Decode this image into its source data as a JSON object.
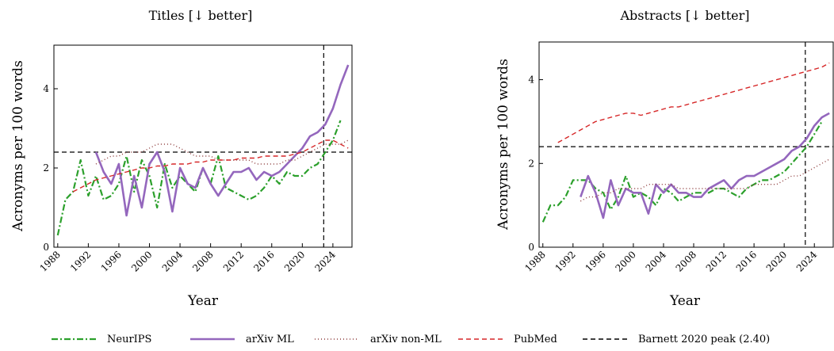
{
  "chart_data": [
    {
      "type": "line",
      "title": "Titles [↓ better]",
      "xlabel": "Year",
      "ylabel": "Acronyms per 100 words",
      "xlim": [
        1987.5,
        2026.5
      ],
      "ylim": [
        0,
        5.1
      ],
      "xticks": [
        1988,
        1992,
        1996,
        2000,
        2004,
        2008,
        2012,
        2016,
        2020,
        2024
      ],
      "yticks": [
        0,
        2,
        4
      ],
      "reference_y": 2.4,
      "reference_x": 2022.8,
      "series": [
        {
          "name": "NeurIPS",
          "color": "#2ca02c",
          "dash": "8 3 2 3",
          "x": [
            1988,
            1989,
            1990,
            1991,
            1992,
            1993,
            1994,
            1995,
            1996,
            1997,
            1998,
            1999,
            2000,
            2001,
            2002,
            2003,
            2004,
            2005,
            2006,
            2007,
            2008,
            2009,
            2010,
            2011,
            2012,
            2013,
            2014,
            2015,
            2016,
            2017,
            2018,
            2019,
            2020,
            2021,
            2022,
            2023,
            2024,
            2025
          ],
          "y": [
            0.3,
            1.2,
            1.4,
            2.2,
            1.3,
            1.8,
            1.2,
            1.3,
            1.6,
            2.3,
            1.4,
            2.2,
            1.8,
            1.0,
            2.1,
            1.5,
            1.8,
            1.6,
            1.4,
            2.0,
            1.6,
            2.3,
            1.5,
            1.4,
            1.3,
            1.2,
            1.3,
            1.5,
            1.8,
            1.6,
            1.9,
            1.8,
            1.8,
            2.0,
            2.1,
            2.4,
            2.7,
            3.2
          ]
        },
        {
          "name": "arXiv ML",
          "color": "#9467bd",
          "dash": "",
          "x": [
            1993,
            1994,
            1995,
            1996,
            1997,
            1998,
            1999,
            2000,
            2001,
            2002,
            2003,
            2004,
            2005,
            2006,
            2007,
            2008,
            2009,
            2010,
            2011,
            2012,
            2013,
            2014,
            2015,
            2016,
            2017,
            2018,
            2019,
            2020,
            2021,
            2022,
            2023,
            2024,
            2025,
            2026
          ],
          "y": [
            2.4,
            1.9,
            1.6,
            2.1,
            0.8,
            1.8,
            1.0,
            2.1,
            2.4,
            1.9,
            0.9,
            2.0,
            1.6,
            1.5,
            2.0,
            1.6,
            1.3,
            1.6,
            1.9,
            1.9,
            2.0,
            1.7,
            1.9,
            1.8,
            1.9,
            2.1,
            2.3,
            2.5,
            2.8,
            2.9,
            3.1,
            3.5,
            4.1,
            4.6
          ]
        },
        {
          "name": "arXiv non-ML",
          "color": "#8c3a3a",
          "dash": "1 3",
          "x": [
            1993,
            1994,
            1995,
            1996,
            1997,
            1998,
            1999,
            2000,
            2001,
            2002,
            2003,
            2004,
            2005,
            2006,
            2007,
            2008,
            2009,
            2010,
            2011,
            2012,
            2013,
            2014,
            2015,
            2016,
            2017,
            2018,
            2019,
            2020,
            2021,
            2022,
            2023,
            2024,
            2025,
            2026
          ],
          "y": [
            2.1,
            2.2,
            2.3,
            2.3,
            2.4,
            2.4,
            2.4,
            2.5,
            2.6,
            2.6,
            2.6,
            2.5,
            2.4,
            2.3,
            2.3,
            2.3,
            2.2,
            2.2,
            2.2,
            2.2,
            2.2,
            2.1,
            2.1,
            2.1,
            2.1,
            2.2,
            2.2,
            2.3,
            2.4,
            2.5,
            2.6,
            2.6,
            2.6,
            2.7
          ]
        },
        {
          "name": "PubMed",
          "color": "#d62728",
          "dash": "6 4",
          "x": [
            1990,
            1991,
            1992,
            1993,
            1994,
            1995,
            1996,
            1997,
            1998,
            1999,
            2000,
            2001,
            2002,
            2003,
            2004,
            2005,
            2006,
            2007,
            2008,
            2009,
            2010,
            2011,
            2012,
            2013,
            2014,
            2015,
            2016,
            2017,
            2018,
            2019,
            2020,
            2021,
            2022,
            2023,
            2024,
            2025,
            2026
          ],
          "y": [
            1.4,
            1.5,
            1.6,
            1.7,
            1.75,
            1.8,
            1.85,
            1.9,
            1.95,
            2.0,
            2.0,
            2.05,
            2.05,
            2.1,
            2.1,
            2.1,
            2.15,
            2.15,
            2.2,
            2.2,
            2.2,
            2.2,
            2.25,
            2.25,
            2.25,
            2.3,
            2.3,
            2.3,
            2.3,
            2.35,
            2.4,
            2.5,
            2.6,
            2.7,
            2.7,
            2.6,
            2.5
          ]
        }
      ]
    },
    {
      "type": "line",
      "title": "Abstracts [↓ better]",
      "xlabel": "Year",
      "ylabel": "Acronyms per 100 words",
      "xlim": [
        1987.5,
        2026.5
      ],
      "ylim": [
        0,
        4.9
      ],
      "xticks": [
        1988,
        1992,
        1996,
        2000,
        2004,
        2008,
        2012,
        2016,
        2020,
        2024
      ],
      "yticks": [
        0,
        2,
        4
      ],
      "reference_y": 2.4,
      "reference_x": 2022.8,
      "series": [
        {
          "name": "NeurIPS",
          "color": "#2ca02c",
          "dash": "8 3 2 3",
          "x": [
            1988,
            1989,
            1990,
            1991,
            1992,
            1993,
            1994,
            1995,
            1996,
            1997,
            1998,
            1999,
            2000,
            2001,
            2002,
            2003,
            2004,
            2005,
            2006,
            2007,
            2008,
            2009,
            2010,
            2011,
            2012,
            2013,
            2014,
            2015,
            2016,
            2017,
            2018,
            2019,
            2020,
            2021,
            2022,
            2023,
            2024,
            2025
          ],
          "y": [
            0.6,
            1.0,
            1.0,
            1.2,
            1.6,
            1.6,
            1.6,
            1.4,
            1.3,
            0.9,
            1.2,
            1.7,
            1.2,
            1.3,
            1.2,
            1.0,
            1.4,
            1.3,
            1.1,
            1.2,
            1.3,
            1.3,
            1.3,
            1.4,
            1.4,
            1.3,
            1.2,
            1.4,
            1.5,
            1.6,
            1.6,
            1.7,
            1.8,
            2.0,
            2.2,
            2.4,
            2.7,
            3.0
          ]
        },
        {
          "name": "arXiv ML",
          "color": "#9467bd",
          "dash": "",
          "x": [
            1993,
            1994,
            1995,
            1996,
            1997,
            1998,
            1999,
            2000,
            2001,
            2002,
            2003,
            2004,
            2005,
            2006,
            2007,
            2008,
            2009,
            2010,
            2011,
            2012,
            2013,
            2014,
            2015,
            2016,
            2017,
            2018,
            2019,
            2020,
            2021,
            2022,
            2023,
            2024,
            2025,
            2026
          ],
          "y": [
            1.2,
            1.7,
            1.3,
            0.7,
            1.6,
            1.0,
            1.4,
            1.3,
            1.3,
            0.8,
            1.5,
            1.3,
            1.5,
            1.3,
            1.3,
            1.2,
            1.2,
            1.4,
            1.5,
            1.6,
            1.4,
            1.6,
            1.7,
            1.7,
            1.8,
            1.9,
            2.0,
            2.1,
            2.3,
            2.4,
            2.6,
            2.9,
            3.1,
            3.2
          ]
        },
        {
          "name": "arXiv non-ML",
          "color": "#8c3a3a",
          "dash": "1 3",
          "x": [
            1993,
            1994,
            1995,
            1996,
            1997,
            1998,
            1999,
            2000,
            2001,
            2002,
            2003,
            2004,
            2005,
            2006,
            2007,
            2008,
            2009,
            2010,
            2011,
            2012,
            2013,
            2014,
            2015,
            2016,
            2017,
            2018,
            2019,
            2020,
            2021,
            2022,
            2023,
            2024,
            2025,
            2026
          ],
          "y": [
            1.1,
            1.2,
            1.2,
            1.3,
            1.3,
            1.4,
            1.4,
            1.4,
            1.4,
            1.5,
            1.5,
            1.5,
            1.5,
            1.4,
            1.4,
            1.4,
            1.4,
            1.4,
            1.4,
            1.4,
            1.4,
            1.4,
            1.4,
            1.5,
            1.5,
            1.5,
            1.5,
            1.6,
            1.7,
            1.7,
            1.8,
            1.9,
            2.0,
            2.1
          ]
        },
        {
          "name": "PubMed",
          "color": "#d62728",
          "dash": "6 4",
          "x": [
            1990,
            1991,
            1992,
            1993,
            1994,
            1995,
            1996,
            1997,
            1998,
            1999,
            2000,
            2001,
            2002,
            2003,
            2004,
            2005,
            2006,
            2007,
            2008,
            2009,
            2010,
            2011,
            2012,
            2013,
            2014,
            2015,
            2016,
            2017,
            2018,
            2019,
            2020,
            2021,
            2022,
            2023,
            2024,
            2025,
            2026
          ],
          "y": [
            2.5,
            2.6,
            2.7,
            2.8,
            2.9,
            3.0,
            3.05,
            3.1,
            3.15,
            3.2,
            3.2,
            3.15,
            3.2,
            3.25,
            3.3,
            3.35,
            3.35,
            3.4,
            3.45,
            3.5,
            3.55,
            3.6,
            3.65,
            3.7,
            3.75,
            3.8,
            3.85,
            3.9,
            3.95,
            4.0,
            4.05,
            4.1,
            4.15,
            4.2,
            4.25,
            4.3,
            4.4
          ]
        }
      ]
    }
  ],
  "legend": [
    {
      "label": "NeurIPS",
      "color": "#2ca02c",
      "dash": "8 3 2 3"
    },
    {
      "label": "arXiv ML",
      "color": "#9467bd",
      "dash": ""
    },
    {
      "label": "arXiv non-ML",
      "color": "#8c3a3a",
      "dash": "1 3"
    },
    {
      "label": "PubMed",
      "color": "#d62728",
      "dash": "6 4"
    },
    {
      "label": "Barnett 2020 peak (2.40)",
      "color": "#000000",
      "dash": "6 4"
    }
  ]
}
